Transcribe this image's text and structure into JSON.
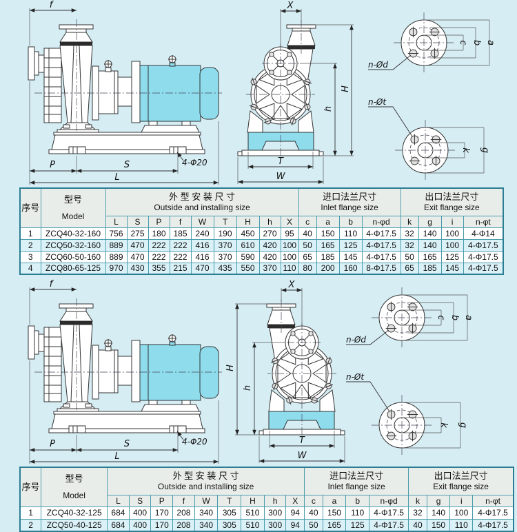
{
  "page": {
    "background": "#d6edf4",
    "line_color": "#333333",
    "pump_accent_cyan": "#8edcec",
    "table_border": "#4a9cac",
    "table_outer_border": "#2a7d92",
    "table_header_bg": "#e9ede9",
    "table_alt_row_bg": "#daf1f7"
  },
  "drawing_labels": {
    "f": "f",
    "P": "P",
    "S": "S",
    "L": "L",
    "X": "X",
    "H": "H",
    "h": "h",
    "T": "T",
    "W": "W",
    "bolt_callout": "4-Φ20",
    "n_phi_d": "n-Ød",
    "n_phi_t": "n-Øt",
    "c": "c",
    "b": "b",
    "a": "a",
    "k": "k",
    "g": "g"
  },
  "tables": {
    "headers": {
      "index": "序号",
      "model_cn": "型号",
      "model_en": "Model",
      "outside_cn": "外 型 安 装 尺 寸",
      "outside_en": "Outside and installing size",
      "inlet_cn": "进口法兰尺寸",
      "inlet_en": "Inlet flange size",
      "exit_cn": "出口法兰尺寸",
      "exit_en": "Exit flange size",
      "sub_cols": [
        "L",
        "S",
        "P",
        "f",
        "W",
        "T",
        "H",
        "h",
        "X",
        "c",
        "a",
        "b",
        "n-φd",
        "k",
        "g",
        "i",
        "n-φt"
      ]
    },
    "table_160": {
      "rows": [
        {
          "no": "1",
          "model": "ZCQ40-32-160",
          "values": [
            "756",
            "275",
            "180",
            "185",
            "240",
            "190",
            "450",
            "270",
            "95",
            "40",
            "150",
            "110",
            "4-Φ17.5",
            "32",
            "140",
            "100",
            "4-Φ14"
          ]
        },
        {
          "no": "2",
          "model": "ZCQ50-32-160",
          "values": [
            "889",
            "470",
            "222",
            "222",
            "416",
            "370",
            "610",
            "420",
            "100",
            "50",
            "165",
            "125",
            "4-Φ17.5",
            "32",
            "140",
            "100",
            "4-Φ17.5"
          ]
        },
        {
          "no": "3",
          "model": "ZCQ60-50-160",
          "values": [
            "889",
            "470",
            "222",
            "222",
            "416",
            "370",
            "590",
            "420",
            "100",
            "65",
            "185",
            "145",
            "4-Φ17.5",
            "50",
            "165",
            "125",
            "4-Φ17.5"
          ]
        },
        {
          "no": "4",
          "model": "ZCQ80-65-125",
          "values": [
            "970",
            "430",
            "355",
            "215",
            "470",
            "435",
            "550",
            "370",
            "110",
            "80",
            "200",
            "160",
            "8-Φ17.5",
            "65",
            "185",
            "145",
            "4-Φ17.5"
          ]
        }
      ]
    },
    "table_125": {
      "rows": [
        {
          "no": "1",
          "model": "ZCQ40-32-125",
          "values": [
            "684",
            "400",
            "170",
            "208",
            "340",
            "305",
            "510",
            "300",
            "94",
            "40",
            "150",
            "110",
            "4-Φ17.5",
            "32",
            "140",
            "100",
            "4-Φ17.5"
          ]
        },
        {
          "no": "2",
          "model": "ZCQ50-40-125",
          "values": [
            "684",
            "400",
            "170",
            "208",
            "340",
            "305",
            "510",
            "300",
            "94",
            "50",
            "165",
            "125",
            "4-Φ17.5",
            "40",
            "150",
            "110",
            "4-Φ17.5"
          ]
        }
      ]
    }
  }
}
